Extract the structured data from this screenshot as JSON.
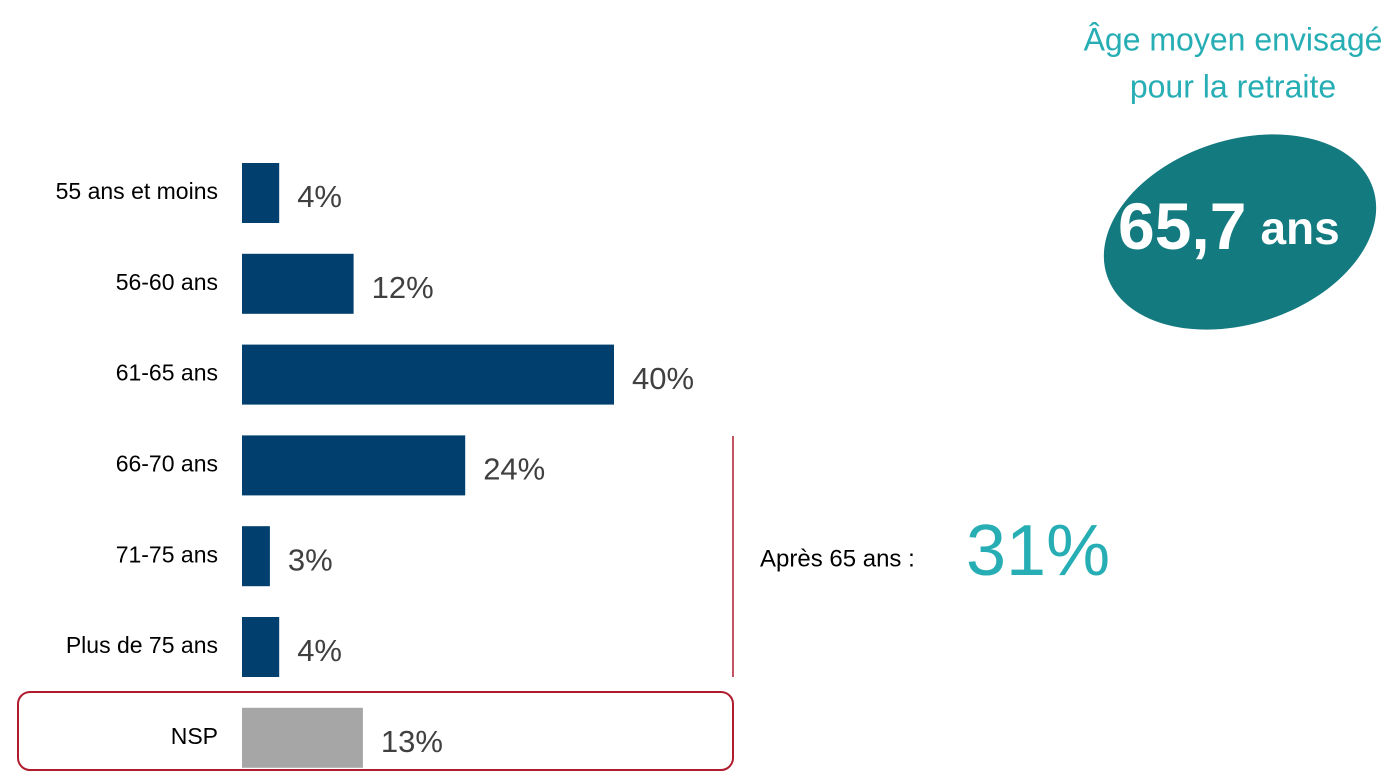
{
  "chart_data": {
    "type": "bar",
    "orientation": "horizontal",
    "categories": [
      "55 ans et moins",
      "56-60 ans",
      "61-65 ans",
      "66-70 ans",
      "71-75 ans",
      "Plus de 75 ans",
      "NSP"
    ],
    "values": [
      4,
      12,
      40,
      24,
      3,
      4,
      13
    ],
    "value_labels": [
      "4%",
      "12%",
      "40%",
      "24%",
      "3%",
      "4%",
      "13%"
    ],
    "colors": [
      "#003f6e",
      "#003f6e",
      "#003f6e",
      "#003f6e",
      "#003f6e",
      "#003f6e",
      "#a6a6a6"
    ],
    "annotations": {
      "mean_title": [
        "Âge moyen envisagé",
        "pour la retraite"
      ],
      "mean_value": "65,7",
      "mean_unit": "ans",
      "after_label": "Après 65 ans :",
      "after_value": "31%"
    }
  }
}
